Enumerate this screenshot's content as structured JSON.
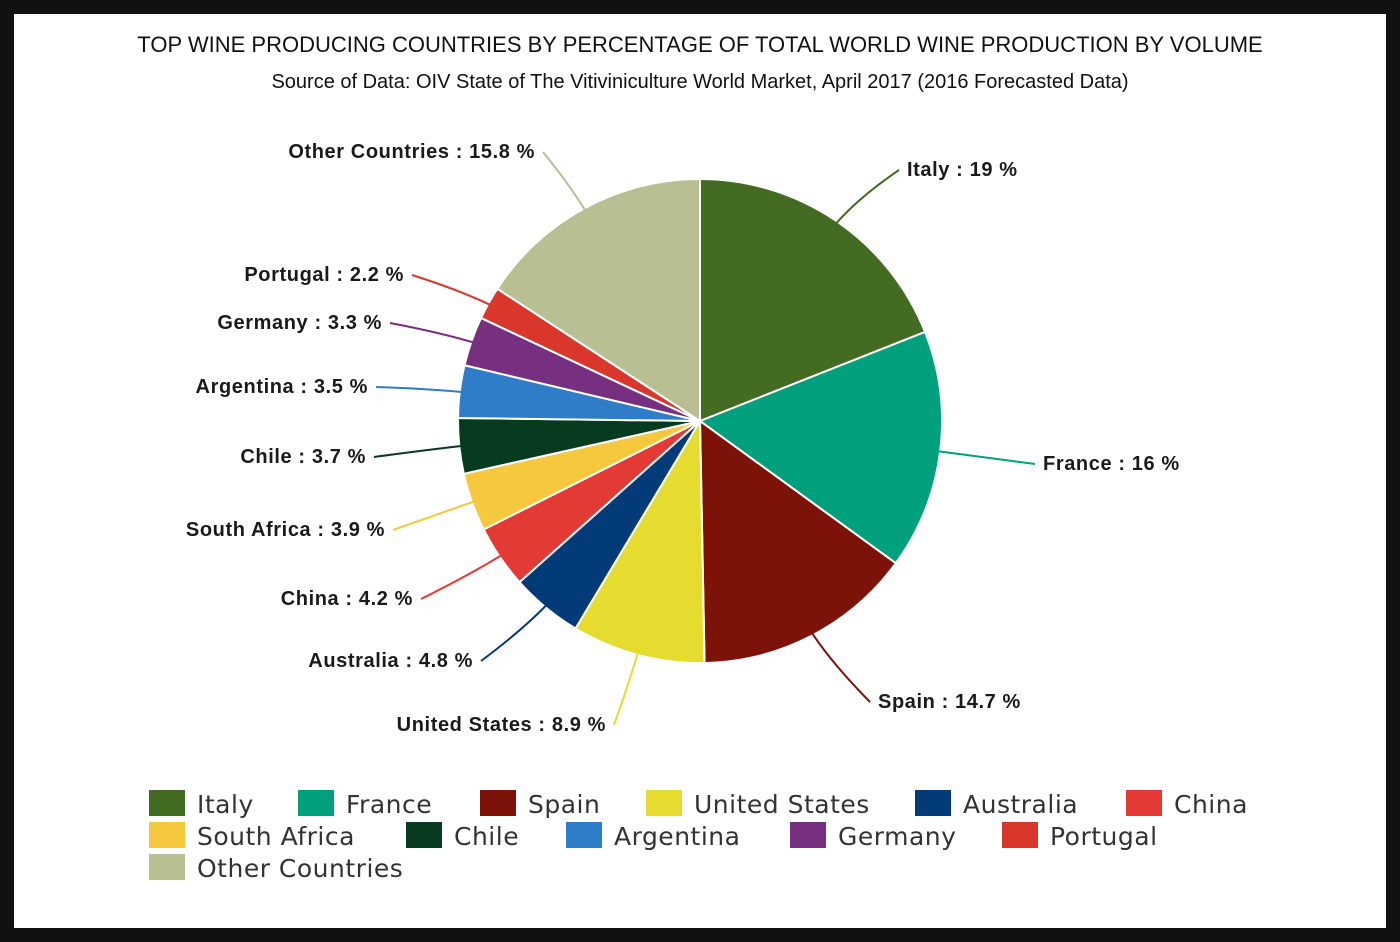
{
  "chart_data": {
    "type": "pie",
    "title": "TOP WINE PRODUCING COUNTRIES BY PERCENTAGE OF TOTAL WORLD WINE PRODUCTION BY VOLUME",
    "subtitle": "Source of Data: OIV State of The Vitiviniculture World Market, April 2017 (2016 Forecasted Data)",
    "slices": [
      {
        "name": "Italy",
        "value": 19,
        "label": "Italy : 19 %",
        "color": "#436b21"
      },
      {
        "name": "France",
        "value": 16,
        "label": "France : 16 %",
        "color": "#01a07c"
      },
      {
        "name": "Spain",
        "value": 14.7,
        "label": "Spain : 14.7 %",
        "color": "#7c1208"
      },
      {
        "name": "United States",
        "value": 8.9,
        "label": "United States : 8.9 %",
        "color": "#e5dc2f"
      },
      {
        "name": "Australia",
        "value": 4.8,
        "label": "Australia : 4.8 %",
        "color": "#033a78"
      },
      {
        "name": "China",
        "value": 4.2,
        "label": "China : 4.2 %",
        "color": "#e33a35"
      },
      {
        "name": "South Africa",
        "value": 3.9,
        "label": "South Africa : 3.9 %",
        "color": "#f6c83e"
      },
      {
        "name": "Chile",
        "value": 3.7,
        "label": "Chile : 3.7 %",
        "color": "#063b1f"
      },
      {
        "name": "Argentina",
        "value": 3.5,
        "label": "Argentina : 3.5 %",
        "color": "#2f7dc9"
      },
      {
        "name": "Germany",
        "value": 3.3,
        "label": "Germany : 3.3 %",
        "color": "#772f7f"
      },
      {
        "name": "Portugal",
        "value": 2.2,
        "label": "Portugal : 2.2 %",
        "color": "#d9372b"
      },
      {
        "name": "Other Countries",
        "value": 15.8,
        "label": "Other Countries : 15.8 %",
        "color": "#b8bf92"
      }
    ],
    "legend": {
      "placement": "bottom",
      "items": [
        {
          "name": "Italy",
          "color": "#436b21"
        },
        {
          "name": "France",
          "color": "#01a07c"
        },
        {
          "name": "Spain",
          "color": "#7c1208"
        },
        {
          "name": "United States",
          "color": "#e5dc2f"
        },
        {
          "name": "Australia",
          "color": "#033a78"
        },
        {
          "name": "China",
          "color": "#e33a35"
        },
        {
          "name": "South Africa",
          "color": "#f6c83e"
        },
        {
          "name": "Chile",
          "color": "#063b1f"
        },
        {
          "name": "Argentina",
          "color": "#2f7dc9"
        },
        {
          "name": "Germany",
          "color": "#772f7f"
        },
        {
          "name": "Portugal",
          "color": "#d9372b"
        },
        {
          "name": "Other Countries",
          "color": "#b8bf92"
        }
      ]
    }
  }
}
